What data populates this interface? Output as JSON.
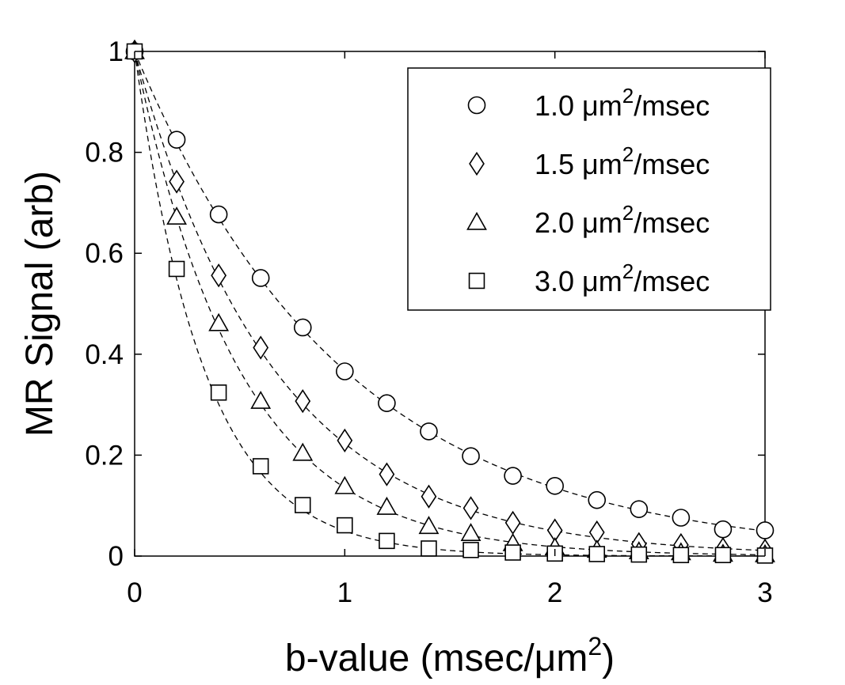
{
  "chart_data": {
    "type": "scatter",
    "xlabel": {
      "prefix": "b-value (msec/",
      "mu": "μ",
      "unit": "m",
      "sup": "2",
      "suffix": ")"
    },
    "ylabel": "MR Signal (arb)",
    "xlim": [
      0,
      3
    ],
    "ylim": [
      0,
      1
    ],
    "xticks": [
      0,
      1,
      2,
      3
    ],
    "xtick_labels": [
      "0",
      "1",
      "2",
      "3"
    ],
    "yticks": [
      0,
      0.2,
      0.4,
      0.6,
      0.8,
      1
    ],
    "ytick_labels": [
      "0",
      "0.2",
      "0.4",
      "0.6",
      "0.8",
      "1"
    ],
    "grid": false,
    "legend_position": "top-right",
    "x": [
      0,
      0.2,
      0.4,
      0.6,
      0.8,
      1.0,
      1.2,
      1.4,
      1.6,
      1.8,
      2.0,
      2.2,
      2.4,
      2.6,
      2.8,
      3.0
    ],
    "series": [
      {
        "name": "1.0 μm2/msec",
        "label": {
          "value": "1.0 ",
          "mu": "μ",
          "unit": "m",
          "sup": "2",
          "tail": "/msec"
        },
        "marker": "circle",
        "D": 1.0,
        "values": [
          1.0,
          0.825,
          0.677,
          0.551,
          0.453,
          0.366,
          0.303,
          0.247,
          0.198,
          0.159,
          0.139,
          0.111,
          0.093,
          0.076,
          0.053,
          0.051
        ]
      },
      {
        "name": "1.5 μm2/msec",
        "label": {
          "value": "1.5 ",
          "mu": "μ",
          "unit": "m",
          "sup": "2",
          "tail": "/msec"
        },
        "marker": "diamond",
        "D": 1.5,
        "values": [
          1.0,
          0.742,
          0.556,
          0.413,
          0.307,
          0.229,
          0.162,
          0.118,
          0.095,
          0.066,
          0.051,
          0.047,
          0.024,
          0.022,
          0.014,
          0.011
        ]
      },
      {
        "name": "2.0 μm2/msec",
        "label": {
          "value": "2.0 ",
          "mu": "μ",
          "unit": "m",
          "sup": "2",
          "tail": "/msec"
        },
        "marker": "triangle",
        "D": 2.0,
        "values": [
          1.0,
          0.672,
          0.461,
          0.307,
          0.204,
          0.138,
          0.097,
          0.059,
          0.045,
          0.025,
          0.017,
          0.012,
          0.009,
          0.007,
          0.004,
          0.003
        ]
      },
      {
        "name": "3.0 μm2/msec",
        "label": {
          "value": "3.0 ",
          "mu": "μ",
          "unit": "m",
          "sup": "2",
          "tail": "/msec"
        },
        "marker": "square",
        "D": 3.0,
        "values": [
          1.0,
          0.569,
          0.324,
          0.178,
          0.101,
          0.061,
          0.03,
          0.015,
          0.012,
          0.007,
          0.005,
          0.004,
          0.003,
          0.002,
          0.002,
          0.001
        ]
      }
    ]
  }
}
